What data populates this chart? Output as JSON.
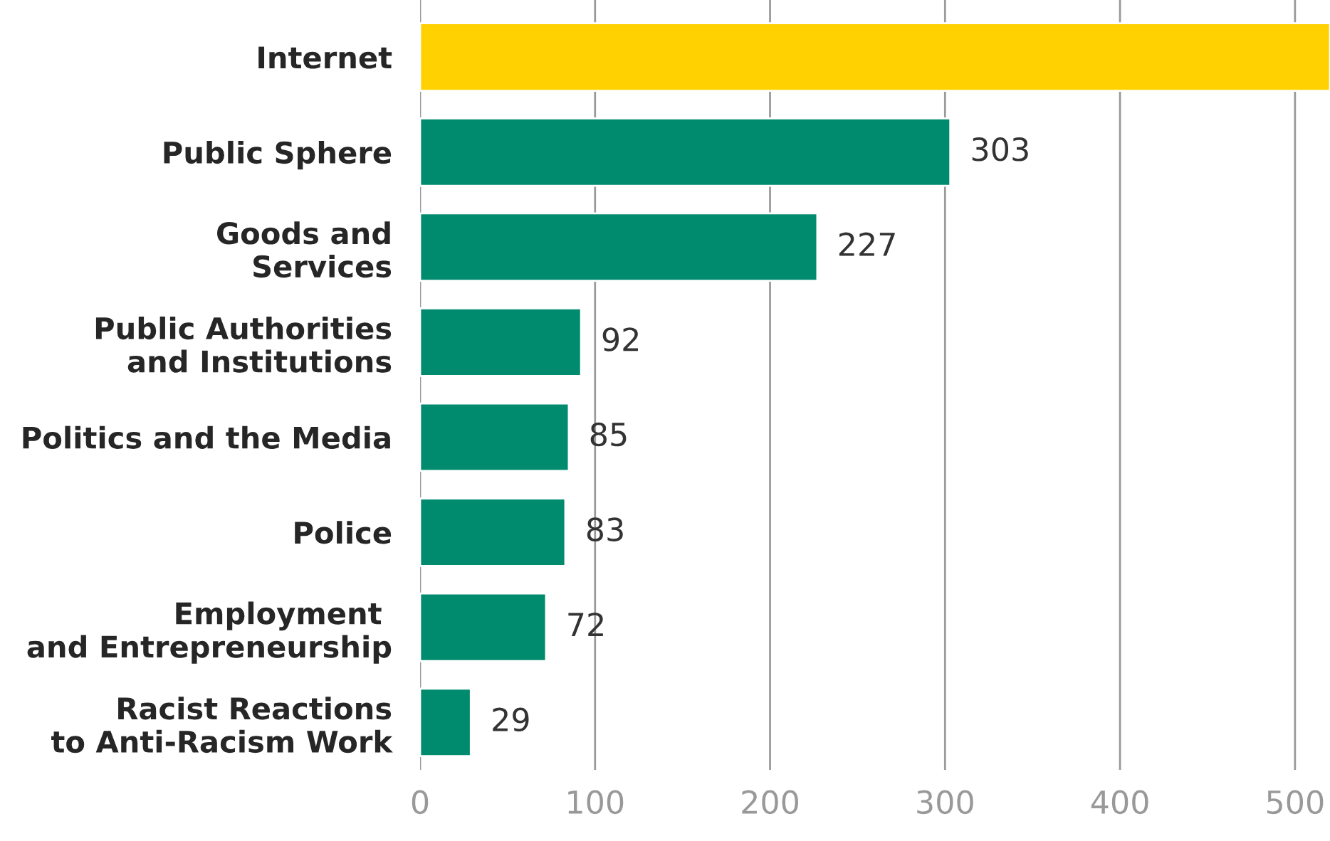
{
  "chart_data": {
    "type": "bar",
    "orientation": "horizontal",
    "categories": [
      "Internet",
      "Public Sphere",
      "Goods and\nServices",
      "Public Authorities\nand Institutions",
      "Politics and the Media",
      "Police",
      "Employment \nand Entrepreneurship",
      "Racist Reactions\nto Anti-Racism Work"
    ],
    "values": [
      520,
      303,
      227,
      92,
      85,
      83,
      72,
      29
    ],
    "colors": [
      "#ffd100",
      "#008b6e",
      "#008b6e",
      "#008b6e",
      "#008b6e",
      "#008b6e",
      "#008b6e",
      "#008b6e"
    ],
    "value_labels": [
      null,
      "303",
      "227",
      "92",
      "85",
      "83",
      "72",
      "29"
    ],
    "xlim": [
      0,
      520
    ],
    "xticks": [
      0,
      100,
      200,
      300,
      400,
      500
    ],
    "grid": "x"
  }
}
